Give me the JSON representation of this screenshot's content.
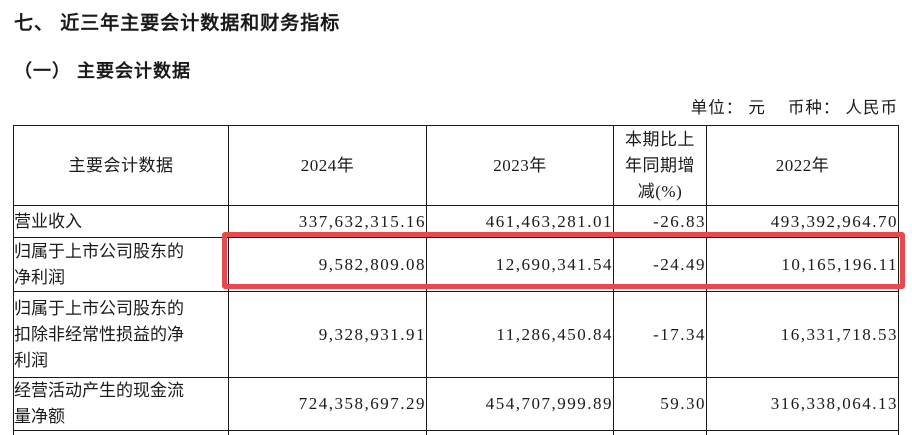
{
  "document": {
    "section_title": "七、 近三年主要会计数据和财务指标",
    "subsection_title": "（一） 主要会计数据",
    "unit_label": "单位： 元",
    "currency_label": "币种： 人民币"
  },
  "table": {
    "headers": {
      "metric": "主要会计数据",
      "y2024": "2024年",
      "y2023": "2023年",
      "change": "本期比上年同期增减(%)",
      "y2022": "2022年"
    },
    "rows": [
      {
        "metric": "营业收入",
        "y2024": "337,632,315.16",
        "y2023": "461,463,281.01",
        "change": "-26.83",
        "y2022": "493,392,964.70"
      },
      {
        "metric": "归属于上市公司股东的净利润",
        "y2024": "9,582,809.08",
        "y2023": "12,690,341.54",
        "change": "-24.49",
        "y2022": "10,165,196.11"
      },
      {
        "metric": "归属于上市公司股东的扣除非经常性损益的净利润",
        "y2024": "9,328,931.91",
        "y2023": "11,286,450.84",
        "change": "-17.34",
        "y2022": "16,331,718.53"
      },
      {
        "metric": "经营活动产生的现金流量净额",
        "y2024": "724,358,697.29",
        "y2023": "454,707,999.89",
        "change": "59.30",
        "y2022": "316,338,064.13"
      }
    ],
    "highlighted_row_index": 1,
    "highlight_color": "#e8494d"
  }
}
